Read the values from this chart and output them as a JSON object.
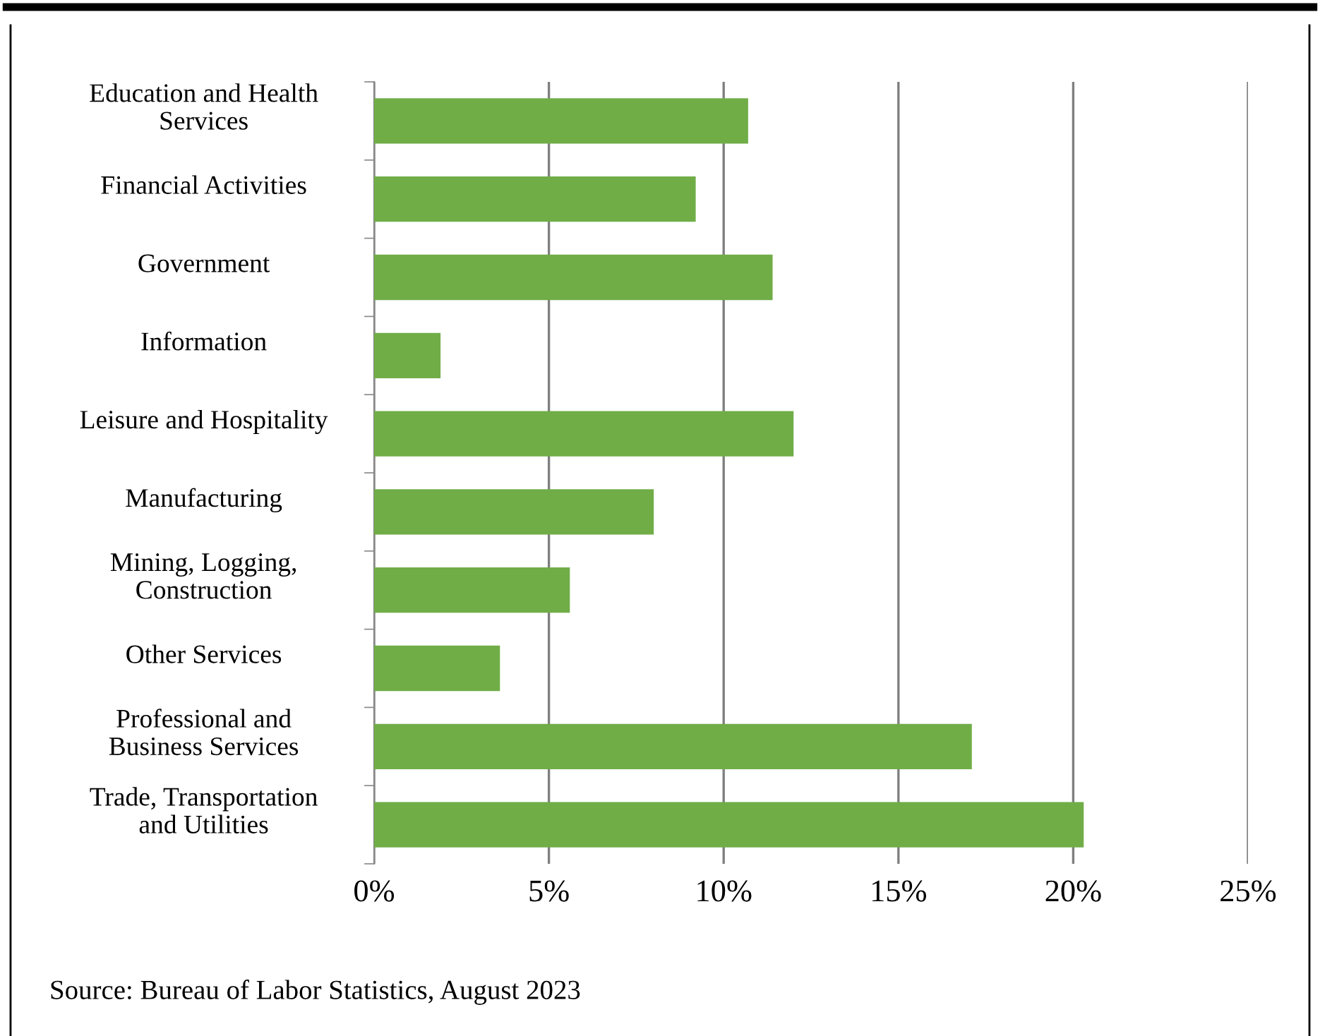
{
  "chart_data": {
    "type": "bar",
    "orientation": "horizontal",
    "categories": [
      "Education and Health\nServices",
      "Financial Activities",
      "Government",
      "Information",
      "Leisure and Hospitality",
      "Manufacturing",
      "Mining, Logging,\nConstruction",
      "Other Services",
      "Professional and\nBusiness Services",
      "Trade, Transportation\nand Utilities"
    ],
    "values": [
      10.7,
      9.2,
      11.4,
      1.9,
      12.0,
      8.0,
      5.6,
      3.6,
      17.1,
      20.3
    ],
    "color": "#70ad47",
    "xlim": [
      0,
      25
    ],
    "xticks": [
      {
        "value": 0,
        "label": "0%"
      },
      {
        "value": 5,
        "label": "5%"
      },
      {
        "value": 10,
        "label": "10%"
      },
      {
        "value": 15,
        "label": "15%"
      },
      {
        "value": 20,
        "label": "20%"
      },
      {
        "value": 25,
        "label": "25%"
      }
    ],
    "grid": "x",
    "annotations": [
      "Source: Bureau of Labor Statistics, August 2023"
    ]
  }
}
